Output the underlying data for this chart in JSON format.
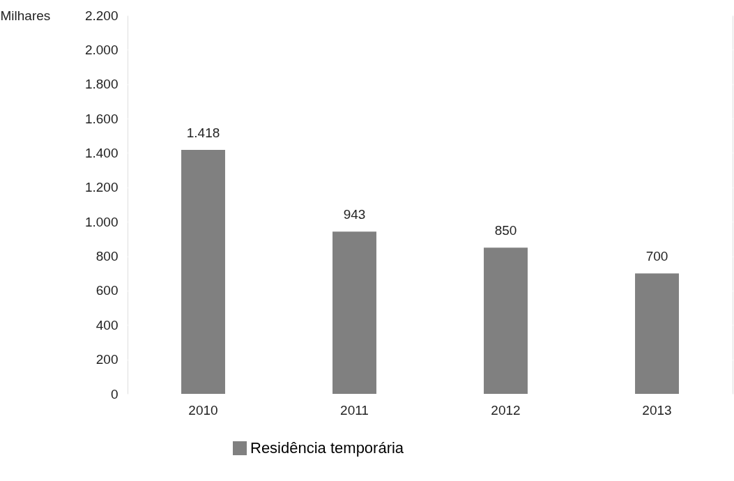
{
  "chart_data": {
    "type": "bar",
    "ylabel": "Milhares",
    "categories": [
      "2010",
      "2011",
      "2012",
      "2013"
    ],
    "series": [
      {
        "name": "Residência temporária",
        "color": "#808080",
        "values": [
          1418,
          943,
          850,
          700
        ],
        "value_labels": [
          "1.418",
          "943",
          "850",
          "700"
        ]
      }
    ],
    "ylim": [
      0,
      2200
    ],
    "yticks": [
      0,
      200,
      400,
      600,
      800,
      {
        "value": 1000,
        "label": "1.000"
      },
      {
        "value": 1200,
        "label": "1.200"
      },
      {
        "value": 1400,
        "label": "1.400"
      },
      {
        "value": 1600,
        "label": "1.600"
      },
      {
        "value": 1800,
        "label": "1.800"
      },
      {
        "value": 2000,
        "label": "2.000"
      },
      {
        "value": 2200,
        "label": "2.200"
      }
    ],
    "grid": "y",
    "legend": "bottom"
  }
}
